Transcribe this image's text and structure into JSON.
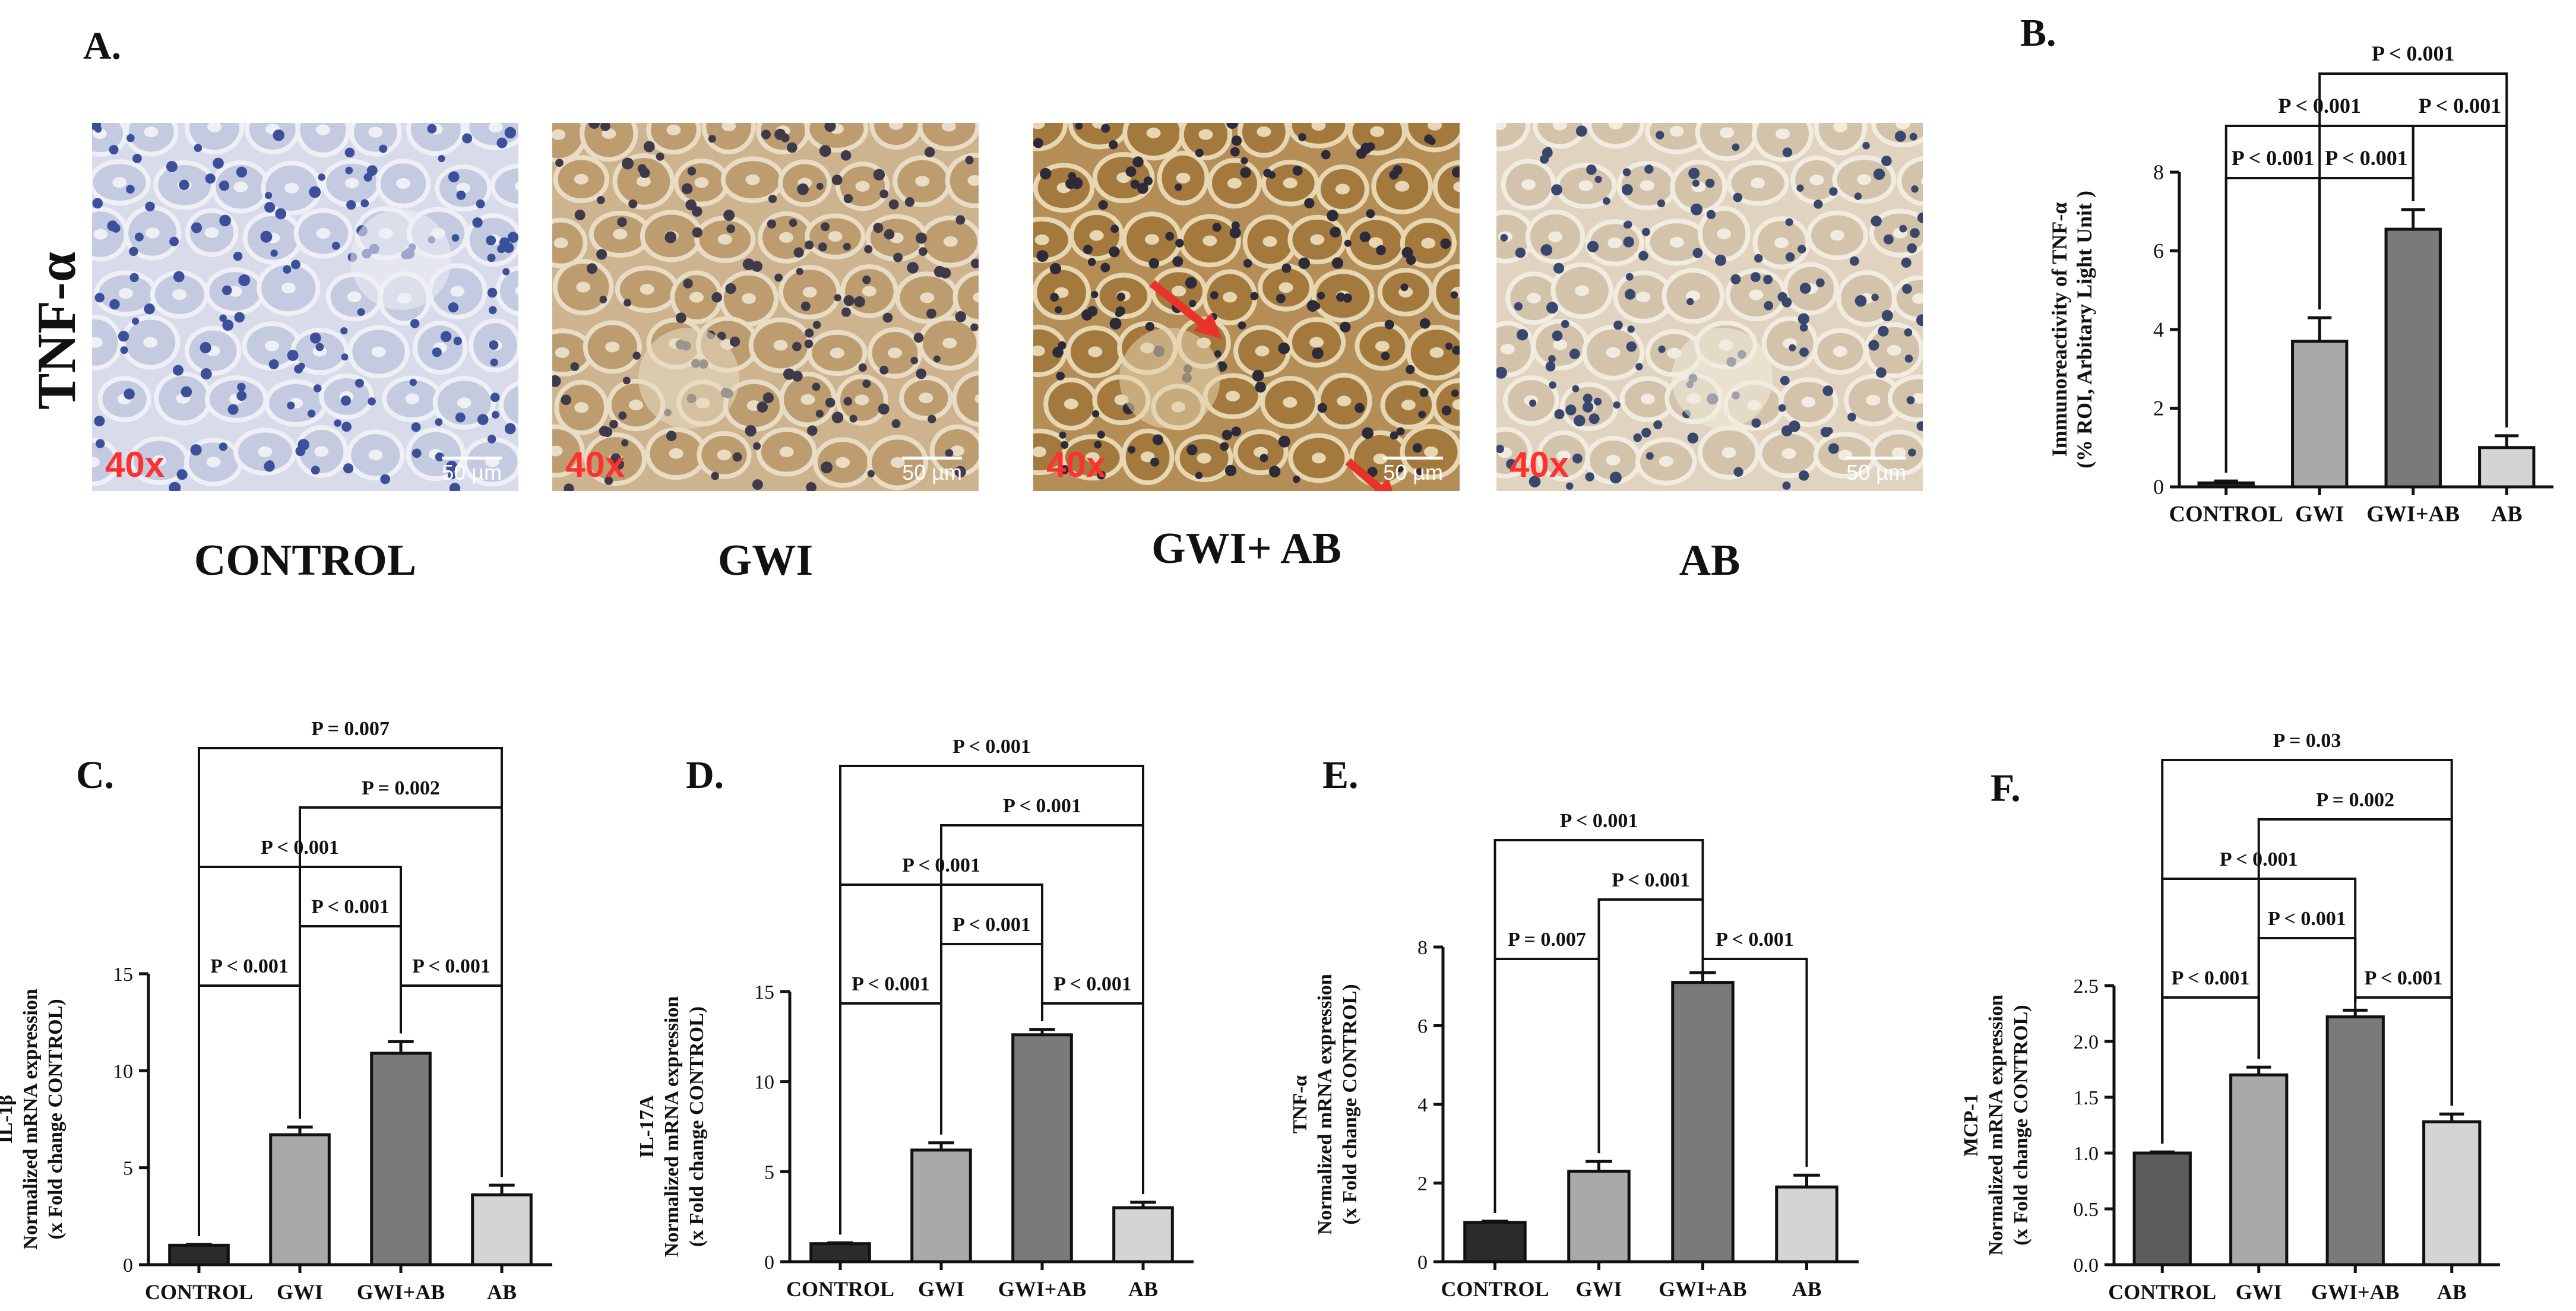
{
  "figure": {
    "panel_a_letter": "A.",
    "panel_b_letter": "B.",
    "panel_c_letter": "C.",
    "panel_d_letter": "D.",
    "panel_e_letter": "E.",
    "panel_f_letter": "F.",
    "row_label": "TNF-α",
    "magnification": "40x",
    "scale_bar": "50 µm",
    "images": [
      {
        "label": "CONTROL"
      },
      {
        "label": "GWI"
      },
      {
        "label": "GWI+ AB"
      },
      {
        "label": "AB"
      }
    ]
  },
  "colors": {
    "CONTROL": "#2b2b2b",
    "GWI": "#a9a9a9",
    "GWI+AB": "#7a7a7a",
    "AB": "#d4d4d4",
    "CONTROL_F": "#5c5c5c",
    "arrow": "#e8332a",
    "mag_text": "#ff3030"
  },
  "chart_data": [
    {
      "panel": "B.",
      "type": "bar",
      "categories": [
        "CONTROL",
        "GWI",
        "GWI+AB",
        "AB"
      ],
      "values": [
        0.1,
        3.7,
        6.55,
        1.0
      ],
      "errors": [
        0.05,
        0.6,
        0.5,
        0.3
      ],
      "ylabel": "Immunoreactivity of TNF-α",
      "ylabel2": "(% ROI, Arbitary Light Unit )",
      "ylim": [
        0,
        8
      ],
      "yticks": [
        0,
        2,
        4,
        6,
        8
      ],
      "ytick_labels": [
        "0",
        "2",
        "4",
        "6",
        "8"
      ],
      "comparisons": [
        {
          "from": 0,
          "to": 1,
          "label": "P < 0.001",
          "level": 1
        },
        {
          "from": 1,
          "to": 2,
          "label": "P < 0.001",
          "level": 1
        },
        {
          "from": 0,
          "to": 2,
          "label": "P < 0.001",
          "level": 2
        },
        {
          "from": 2,
          "to": 3,
          "label": "P < 0.001",
          "level": 2
        },
        {
          "from": 1,
          "to": 3,
          "label": "P < 0.001",
          "level": 3
        }
      ]
    },
    {
      "panel": "C.",
      "type": "bar",
      "categories": [
        "CONTROL",
        "GWI",
        "GWI+AB",
        "AB"
      ],
      "values": [
        1.0,
        6.7,
        10.9,
        3.6
      ],
      "errors": [
        0.05,
        0.4,
        0.6,
        0.5
      ],
      "ylabel": "IL-1β",
      "ylabel2": "Normalized mRNA expression",
      "ylabel3": "(x Fold change CONTROL)",
      "ylim": [
        0,
        15
      ],
      "yticks": [
        0,
        5,
        10,
        15
      ],
      "ytick_labels": [
        "0",
        "5",
        "10",
        "15"
      ],
      "comparisons": [
        {
          "from": 0,
          "to": 1,
          "label": "P < 0.001",
          "level": 1
        },
        {
          "from": 2,
          "to": 3,
          "label": "P < 0.001",
          "level": 1
        },
        {
          "from": 1,
          "to": 2,
          "label": "P < 0.001",
          "level": 2
        },
        {
          "from": 0,
          "to": 2,
          "label": "P < 0.001",
          "level": 3
        },
        {
          "from": 1,
          "to": 3,
          "label": "P = 0.002",
          "level": 4
        },
        {
          "from": 0,
          "to": 3,
          "label": "P = 0.007",
          "level": 5
        }
      ]
    },
    {
      "panel": "D.",
      "type": "bar",
      "categories": [
        "CONTROL",
        "GWI",
        "GWI+AB",
        "AB"
      ],
      "values": [
        1.0,
        6.2,
        12.6,
        3.0
      ],
      "errors": [
        0.05,
        0.4,
        0.3,
        0.3
      ],
      "ylabel": "IL-17A",
      "ylabel2": "Normalized mRNA expression",
      "ylabel3": "(x Fold change CONTROL)",
      "ylim": [
        0,
        15
      ],
      "yticks": [
        0,
        5,
        10,
        15
      ],
      "ytick_labels": [
        "0",
        "5",
        "10",
        "15"
      ],
      "comparisons": [
        {
          "from": 0,
          "to": 1,
          "label": "P < 0.001",
          "level": 1
        },
        {
          "from": 2,
          "to": 3,
          "label": "P < 0.001",
          "level": 1
        },
        {
          "from": 1,
          "to": 2,
          "label": "P < 0.001",
          "level": 2
        },
        {
          "from": 0,
          "to": 2,
          "label": "P < 0.001",
          "level": 3
        },
        {
          "from": 1,
          "to": 3,
          "label": "P < 0.001",
          "level": 4
        },
        {
          "from": 0,
          "to": 3,
          "label": "P < 0.001",
          "level": 5
        }
      ]
    },
    {
      "panel": "E.",
      "type": "bar",
      "categories": [
        "CONTROL",
        "GWI",
        "GWI+AB",
        "AB"
      ],
      "values": [
        1.0,
        2.3,
        7.1,
        1.9
      ],
      "errors": [
        0.03,
        0.25,
        0.25,
        0.3
      ],
      "ylabel": "TNF-α",
      "ylabel2": "Normalized mRNA expression",
      "ylabel3": "(x Fold change CONTROL)",
      "ylim": [
        0,
        8
      ],
      "yticks": [
        0,
        2,
        4,
        6,
        8
      ],
      "ytick_labels": [
        "0",
        "2",
        "4",
        "6",
        "8"
      ],
      "comparisons": [
        {
          "from": 0,
          "to": 1,
          "label": "P = 0.007",
          "level": 1
        },
        {
          "from": 2,
          "to": 3,
          "label": "P < 0.001",
          "level": 1
        },
        {
          "from": 1,
          "to": 2,
          "label": "P < 0.001",
          "level": 2
        },
        {
          "from": 0,
          "to": 2,
          "label": "P < 0.001",
          "level": 3
        }
      ]
    },
    {
      "panel": "F.",
      "type": "bar",
      "categories": [
        "CONTROL",
        "GWI",
        "GWI+AB",
        "AB"
      ],
      "values": [
        1.0,
        1.7,
        2.22,
        1.28
      ],
      "errors": [
        0.01,
        0.07,
        0.06,
        0.07
      ],
      "ylabel": "MCP-1",
      "ylabel2": "Normalized mRNA expression",
      "ylabel3": "(x Fold change CONTROL)",
      "ylim": [
        0,
        2.5
      ],
      "yticks": [
        0,
        0.5,
        1.0,
        1.5,
        2.0,
        2.5
      ],
      "ytick_labels": [
        "0.0",
        "0.5",
        "1.0",
        "1.5",
        "2.0",
        "2.5"
      ],
      "comparisons": [
        {
          "from": 0,
          "to": 1,
          "label": "P < 0.001",
          "level": 1
        },
        {
          "from": 2,
          "to": 3,
          "label": "P < 0.001",
          "level": 1
        },
        {
          "from": 1,
          "to": 2,
          "label": "P < 0.001",
          "level": 2
        },
        {
          "from": 0,
          "to": 2,
          "label": "P < 0.001",
          "level": 3
        },
        {
          "from": 1,
          "to": 3,
          "label": "P = 0.002",
          "level": 4
        },
        {
          "from": 0,
          "to": 3,
          "label": "P = 0.03",
          "level": 5
        }
      ]
    }
  ]
}
